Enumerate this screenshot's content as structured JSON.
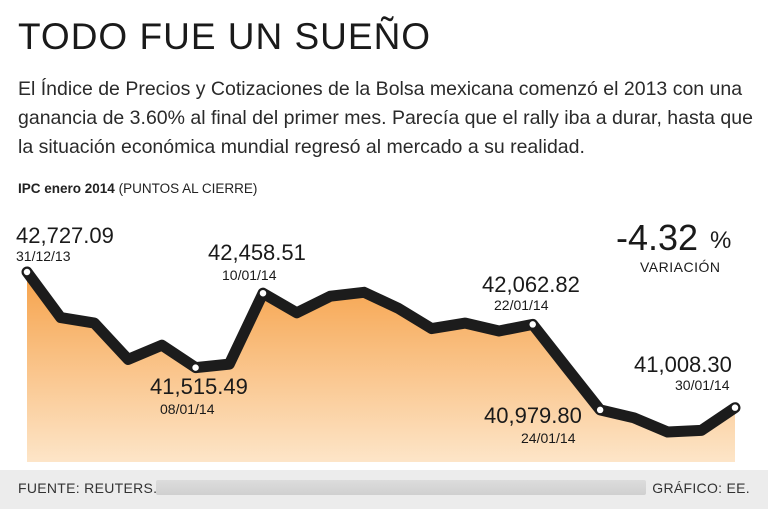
{
  "headline": "TODO FUE UN SUEÑO",
  "intro": "El Índice de Precios y Cotizaciones de la Bolsa mexicana comenzó el 2013 con una ganancia de 3.60% al final del primer mes. Parecía que el rally iba a durar, hasta que la situación económica mundial regresó al mercado a su realidad.",
  "caption": {
    "bold": "IPC enero 2014",
    "rest": "(PUNTOS AL CIERRE)"
  },
  "variation": {
    "value": "-4.32",
    "unit": "%",
    "label": "VARIACIÓN"
  },
  "footer": {
    "source": "FUENTE: REUTERS.",
    "credit": "GRÁFICO: EE."
  },
  "colors": {
    "fill_top": "#f6a24a",
    "fill_bottom": "#fde5c8",
    "line": "#1c1c1c",
    "marker": "#ffffff"
  },
  "chart_data": {
    "type": "area",
    "title": "IPC enero 2014",
    "ylabel": "PUNTOS AL CIERRE",
    "ylim": [
      40700,
      42900
    ],
    "x": [
      0,
      1,
      2,
      3,
      4,
      5,
      6,
      7,
      8,
      9,
      10,
      11,
      12,
      13,
      14,
      15,
      16,
      17,
      18,
      19,
      20,
      21
    ],
    "values": [
      42727.09,
      42150,
      42080,
      41620,
      41800,
      41515.49,
      41560,
      42458.51,
      42210,
      42420,
      42470,
      42270,
      42010,
      42080,
      41980,
      42062.82,
      41520,
      40979.8,
      40880,
      40700,
      40720,
      41008.3
    ],
    "annotations": [
      {
        "index": 0,
        "value": "42,727.09",
        "date": "31/12/13"
      },
      {
        "index": 5,
        "value": "41,515.49",
        "date": "08/01/14"
      },
      {
        "index": 7,
        "value": "42,458.51",
        "date": "10/01/14"
      },
      {
        "index": 15,
        "value": "42,062.82",
        "date": "22/01/14"
      },
      {
        "index": 17,
        "value": "40,979.80",
        "date": "24/01/14"
      },
      {
        "index": 21,
        "value": "41,008.30",
        "date": "30/01/14"
      }
    ]
  }
}
